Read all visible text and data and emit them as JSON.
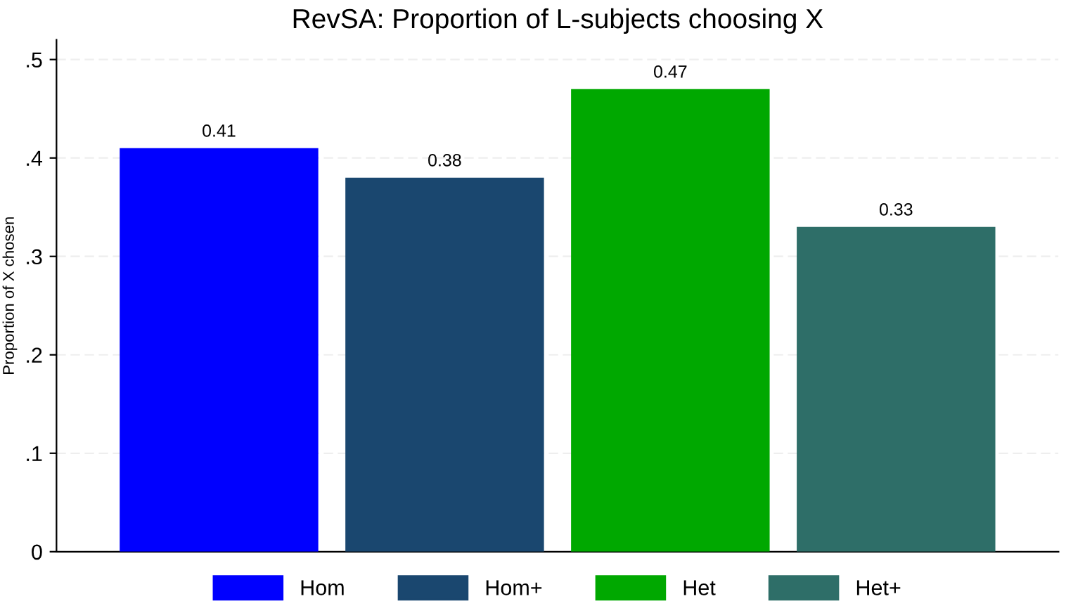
{
  "chart_data": {
    "type": "bar",
    "title": "RevSA: Proportion of L-subjects choosing X",
    "ylabel": "Proportion of X chosen",
    "categories": [
      null,
      null,
      null,
      null
    ],
    "series": [
      {
        "name": "Hom",
        "color": "#0000ff",
        "values": [
          0.41,
          null,
          null,
          null
        ]
      },
      {
        "name": "Hom+",
        "color": "#1a476f",
        "values": [
          null,
          0.38,
          null,
          null
        ]
      },
      {
        "name": "Het",
        "color": "#00a800",
        "values": [
          null,
          null,
          0.47,
          null
        ]
      },
      {
        "name": "Het+",
        "color": "#2e6e68",
        "values": [
          null,
          null,
          null,
          0.33
        ]
      }
    ],
    "data_labels": true,
    "ylim": [
      0,
      0.52
    ],
    "yticks": [
      {
        "value": 0,
        "label": "0"
      },
      {
        "value": 0.1,
        "label": ".1"
      },
      {
        "value": 0.2,
        "label": ".2"
      },
      {
        "value": 0.3,
        "label": ".3"
      },
      {
        "value": 0.4,
        "label": ".4"
      },
      {
        "value": 0.5,
        "label": ".5"
      }
    ],
    "grid": "y",
    "legend": "bottom"
  }
}
